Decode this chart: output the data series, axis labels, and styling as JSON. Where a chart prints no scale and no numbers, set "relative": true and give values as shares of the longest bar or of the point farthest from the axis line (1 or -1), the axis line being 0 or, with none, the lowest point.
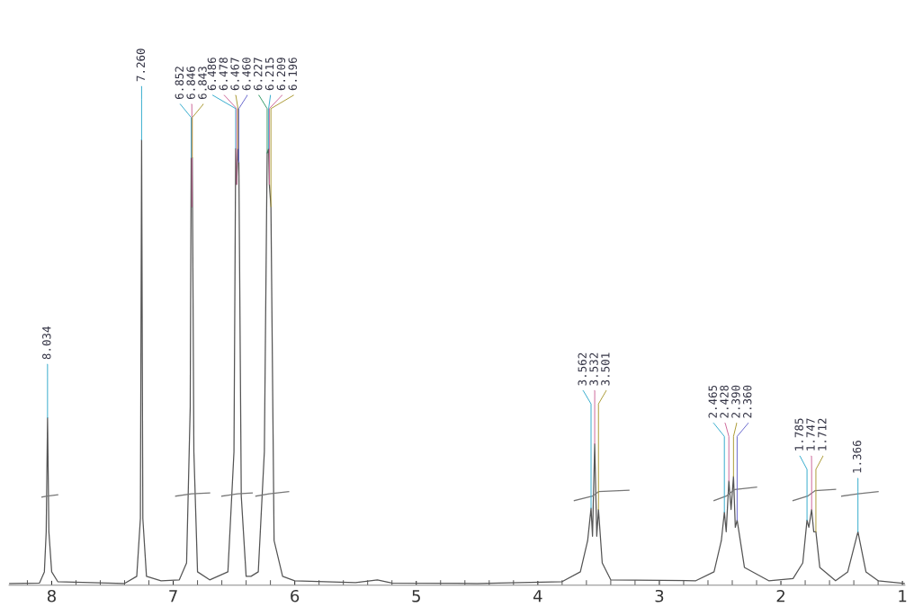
{
  "chart_data": {
    "type": "line",
    "relative": true,
    "xlim": [
      8.35,
      0.98
    ],
    "xticks": [
      8,
      7,
      6,
      5,
      4,
      3,
      2,
      1
    ],
    "tick_labels": "x",
    "grid": false,
    "series": [
      {
        "color": "#555555",
        "x": [
          8.35,
          8.1,
          8.06,
          8.045,
          8.034,
          8.023,
          8.0,
          7.95,
          7.4,
          7.3,
          7.27,
          7.26,
          7.25,
          7.22,
          7.1,
          6.95,
          6.89,
          6.86,
          6.852,
          6.846,
          6.843,
          6.83,
          6.8,
          6.7,
          6.55,
          6.5,
          6.486,
          6.478,
          6.467,
          6.46,
          6.44,
          6.4,
          6.36,
          6.3,
          6.25,
          6.227,
          6.215,
          6.209,
          6.196,
          6.17,
          6.1,
          6.0,
          5.5,
          5.32,
          5.2,
          4.5,
          3.8,
          3.65,
          3.59,
          3.562,
          3.55,
          3.532,
          3.515,
          3.501,
          3.47,
          3.4,
          2.7,
          2.55,
          2.49,
          2.465,
          2.45,
          2.428,
          2.41,
          2.39,
          2.375,
          2.36,
          2.3,
          2.1,
          1.9,
          1.82,
          1.785,
          1.77,
          1.747,
          1.73,
          1.712,
          1.68,
          1.55,
          1.45,
          1.366,
          1.3,
          1.2,
          0.98
        ],
        "values": [
          0.004,
          0.005,
          0.03,
          0.12,
          0.376,
          0.12,
          0.03,
          0.008,
          0.004,
          0.02,
          0.15,
          1.0,
          0.15,
          0.02,
          0.01,
          0.012,
          0.05,
          0.4,
          0.96,
          0.85,
          0.96,
          0.3,
          0.03,
          0.012,
          0.03,
          0.3,
          0.98,
          0.9,
          0.98,
          0.95,
          0.2,
          0.02,
          0.02,
          0.03,
          0.3,
          0.97,
          0.98,
          0.9,
          0.85,
          0.1,
          0.02,
          0.01,
          0.006,
          0.012,
          0.005,
          0.004,
          0.008,
          0.03,
          0.1,
          0.173,
          0.11,
          0.317,
          0.11,
          0.17,
          0.05,
          0.012,
          0.01,
          0.03,
          0.1,
          0.164,
          0.12,
          0.234,
          0.17,
          0.244,
          0.13,
          0.146,
          0.04,
          0.01,
          0.015,
          0.05,
          0.146,
          0.13,
          0.17,
          0.12,
          0.12,
          0.04,
          0.01,
          0.03,
          0.12,
          0.03,
          0.01,
          0.004
        ]
      },
      {
        "color": "#777777",
        "x": [
          8.08,
          8.034,
          7.95
        ],
        "values": [
          0.198,
          0.2,
          0.203
        ]
      },
      {
        "color": "#777777",
        "x": [
          6.98,
          6.85,
          6.7
        ],
        "values": [
          0.2,
          0.205,
          0.207
        ]
      },
      {
        "color": "#777777",
        "x": [
          6.6,
          6.47,
          6.35
        ],
        "values": [
          0.2,
          0.205,
          0.207
        ]
      },
      {
        "color": "#777777",
        "x": [
          6.32,
          6.21,
          6.05
        ],
        "values": [
          0.2,
          0.205,
          0.21
        ]
      },
      {
        "color": "#777777",
        "x": [
          3.7,
          3.55,
          3.5,
          3.25
        ],
        "values": [
          0.19,
          0.2,
          0.21,
          0.213
        ]
      },
      {
        "color": "#777777",
        "x": [
          2.55,
          2.45,
          2.38,
          2.2
        ],
        "values": [
          0.19,
          0.2,
          0.215,
          0.22
        ]
      },
      {
        "color": "#777777",
        "x": [
          1.9,
          1.78,
          1.72,
          1.55
        ],
        "values": [
          0.19,
          0.2,
          0.212,
          0.215
        ]
      },
      {
        "color": "#777777",
        "x": [
          1.5,
          1.366,
          1.2
        ],
        "values": [
          0.2,
          0.205,
          0.21
        ]
      }
    ],
    "annotations": [
      {
        "text": "8.034",
        "x": 8.034,
        "y": 0.376
      },
      {
        "text": "7.260",
        "x": 7.26,
        "y": 1.0
      },
      {
        "text": "6.852",
        "x": 6.852,
        "y": 0.96
      },
      {
        "text": "6.846",
        "x": 6.846,
        "y": 0.85
      },
      {
        "text": "6.843",
        "x": 6.843,
        "y": 0.96
      },
      {
        "text": "6.486",
        "x": 6.486,
        "y": 0.98
      },
      {
        "text": "6.478",
        "x": 6.478,
        "y": 0.9
      },
      {
        "text": "6.467",
        "x": 6.467,
        "y": 0.98
      },
      {
        "text": "6.460",
        "x": 6.46,
        "y": 0.95
      },
      {
        "text": "6.227",
        "x": 6.227,
        "y": 0.97
      },
      {
        "text": "6.215",
        "x": 6.215,
        "y": 0.98
      },
      {
        "text": "6.209",
        "x": 6.209,
        "y": 0.9
      },
      {
        "text": "6.196",
        "x": 6.196,
        "y": 0.85
      },
      {
        "text": "3.562",
        "x": 3.562,
        "y": 0.173
      },
      {
        "text": "3.532",
        "x": 3.532,
        "y": 0.317
      },
      {
        "text": "3.501",
        "x": 3.501,
        "y": 0.17
      },
      {
        "text": "2.465",
        "x": 2.465,
        "y": 0.164
      },
      {
        "text": "2.428",
        "x": 2.428,
        "y": 0.234
      },
      {
        "text": "2.390",
        "x": 2.39,
        "y": 0.244
      },
      {
        "text": "2.360",
        "x": 2.36,
        "y": 0.146
      },
      {
        "text": "1.785",
        "x": 1.785,
        "y": 0.146
      },
      {
        "text": "1.747",
        "x": 1.747,
        "y": 0.17
      },
      {
        "text": "1.712",
        "x": 1.712,
        "y": 0.12
      },
      {
        "text": "1.366",
        "x": 1.366,
        "y": 0.12
      }
    ]
  }
}
